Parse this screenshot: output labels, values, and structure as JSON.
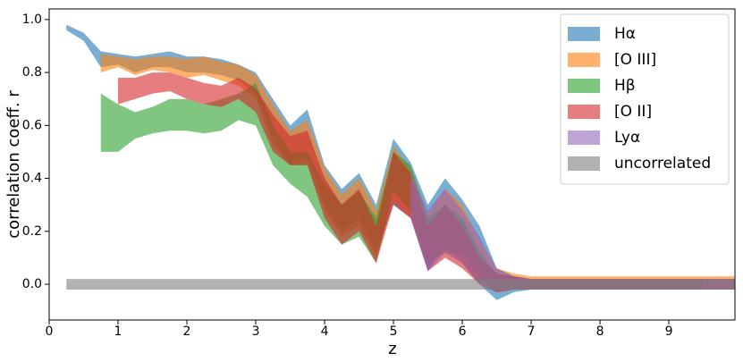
{
  "chart_data": {
    "type": "band",
    "xlabel": "z",
    "ylabel": "correlation coeff. r",
    "xlim": [
      0,
      9.96
    ],
    "ylim": [
      -0.135,
      1.04
    ],
    "xticks": [
      0,
      1,
      2,
      3,
      4,
      5,
      6,
      7,
      8,
      9
    ],
    "yticks": [
      {
        "value": 0,
        "label": "0.0"
      },
      0.2,
      0.4,
      0.6,
      0.8,
      {
        "value": 1,
        "label": "1.0"
      }
    ],
    "legend": "upper right",
    "opacity": 0.6,
    "x": [
      0.25,
      0.5,
      0.75,
      1.0,
      1.25,
      1.5,
      1.75,
      2.0,
      2.25,
      2.5,
      2.75,
      3.0,
      3.25,
      3.5,
      3.75,
      4.0,
      4.25,
      4.5,
      4.75,
      5.0,
      5.25,
      5.5,
      5.75,
      6.0,
      6.25,
      6.5,
      6.75,
      7.0,
      7.25,
      7.5,
      7.75,
      8.0,
      8.25,
      8.5,
      8.75,
      9.0,
      9.25,
      9.5,
      9.75,
      9.95
    ],
    "series": [
      {
        "name": "Hα",
        "color": "#1f77b4",
        "lower": [
          0.96,
          0.92,
          0.82,
          0.83,
          0.8,
          0.82,
          0.82,
          0.8,
          0.8,
          0.79,
          0.77,
          0.72,
          0.55,
          0.45,
          0.48,
          0.3,
          0.2,
          0.25,
          0.12,
          0.3,
          0.25,
          0.05,
          0.15,
          0.08,
          0.0,
          -0.06,
          -0.03,
          -0.02,
          -0.02,
          -0.02,
          -0.02,
          -0.02,
          -0.02,
          -0.02,
          -0.02,
          -0.02,
          -0.02,
          -0.02,
          -0.02,
          -0.02
        ],
        "upper": [
          0.98,
          0.95,
          0.88,
          0.87,
          0.86,
          0.87,
          0.88,
          0.86,
          0.86,
          0.85,
          0.83,
          0.8,
          0.7,
          0.6,
          0.66,
          0.45,
          0.36,
          0.42,
          0.3,
          0.55,
          0.46,
          0.3,
          0.4,
          0.32,
          0.22,
          0.06,
          0.03,
          0.02,
          0.02,
          0.02,
          0.02,
          0.02,
          0.02,
          0.02,
          0.02,
          0.02,
          0.02,
          0.02,
          0.02,
          0.02
        ]
      },
      {
        "name": "[O III]",
        "color": "#ff7f0e",
        "lower": [
          null,
          null,
          0.8,
          0.82,
          0.79,
          0.81,
          0.8,
          0.78,
          0.79,
          0.77,
          0.75,
          0.7,
          0.52,
          0.45,
          0.45,
          0.28,
          0.18,
          0.22,
          0.1,
          0.32,
          0.25,
          0.08,
          0.12,
          0.08,
          0.0,
          -0.03,
          -0.02,
          -0.02,
          -0.02,
          -0.02,
          -0.02,
          -0.02,
          -0.02,
          -0.02,
          -0.02,
          -0.02,
          -0.02,
          -0.02,
          -0.02,
          -0.02
        ],
        "upper": [
          null,
          null,
          0.87,
          0.86,
          0.85,
          0.86,
          0.86,
          0.85,
          0.86,
          0.84,
          0.83,
          0.79,
          0.68,
          0.58,
          0.62,
          0.44,
          0.34,
          0.4,
          0.28,
          0.52,
          0.44,
          0.26,
          0.36,
          0.3,
          0.16,
          0.06,
          0.04,
          0.03,
          0.03,
          0.03,
          0.03,
          0.03,
          0.03,
          0.03,
          0.03,
          0.03,
          0.03,
          0.03,
          0.03,
          0.03
        ]
      },
      {
        "name": "Hβ",
        "color": "#2ca02c",
        "lower": [
          null,
          null,
          0.5,
          0.5,
          0.55,
          0.57,
          0.58,
          0.58,
          0.57,
          0.58,
          0.62,
          0.6,
          0.45,
          0.38,
          0.33,
          0.22,
          0.15,
          0.18,
          0.08,
          0.35,
          0.28,
          0.08,
          0.12,
          0.12,
          0.02,
          -0.03,
          -0.02,
          -0.02,
          -0.02,
          -0.02,
          -0.02,
          -0.02,
          -0.02,
          -0.02,
          -0.02,
          -0.02,
          -0.02,
          -0.02,
          null,
          null
        ],
        "upper": [
          null,
          null,
          0.72,
          0.68,
          0.65,
          0.67,
          0.7,
          0.7,
          0.68,
          0.7,
          0.72,
          0.76,
          0.6,
          0.5,
          0.5,
          0.38,
          0.3,
          0.35,
          0.25,
          0.5,
          0.45,
          0.25,
          0.3,
          0.25,
          0.12,
          0.04,
          0.03,
          0.02,
          0.02,
          0.02,
          0.02,
          0.02,
          0.02,
          0.02,
          0.02,
          0.02,
          0.02,
          0.02,
          null,
          null
        ]
      },
      {
        "name": "[O II]",
        "color": "#d62728",
        "lower": [
          null,
          null,
          null,
          0.68,
          0.7,
          0.72,
          0.73,
          0.7,
          0.68,
          0.67,
          0.7,
          0.65,
          0.5,
          0.45,
          0.45,
          0.25,
          0.15,
          0.2,
          0.08,
          0.3,
          0.25,
          0.05,
          0.1,
          0.06,
          0.0,
          -0.03,
          -0.02,
          -0.02,
          -0.02,
          -0.02,
          -0.02,
          -0.02,
          -0.02,
          -0.02,
          -0.02,
          -0.02,
          -0.02,
          -0.02,
          -0.02,
          -0.02
        ],
        "upper": [
          null,
          null,
          null,
          0.78,
          0.78,
          0.8,
          0.8,
          0.78,
          0.76,
          0.75,
          0.78,
          0.74,
          0.64,
          0.56,
          0.58,
          0.4,
          0.3,
          0.36,
          0.22,
          0.5,
          0.42,
          0.22,
          0.3,
          0.22,
          0.1,
          0.04,
          0.03,
          0.02,
          0.02,
          0.02,
          0.02,
          0.02,
          0.02,
          0.02,
          0.02,
          0.02,
          0.02,
          0.02,
          0.02,
          0.02
        ]
      },
      {
        "name": "Lyα",
        "color": "#9467bd",
        "lower": [
          null,
          null,
          null,
          null,
          null,
          null,
          null,
          null,
          null,
          null,
          null,
          null,
          null,
          null,
          null,
          null,
          null,
          null,
          null,
          null,
          0.25,
          0.05,
          0.12,
          0.08,
          0.0,
          -0.03,
          -0.02,
          -0.02,
          -0.02,
          -0.02,
          -0.02,
          -0.02,
          -0.02,
          -0.02,
          -0.02,
          -0.02,
          -0.02,
          -0.02,
          -0.02,
          -0.02
        ],
        "upper": [
          null,
          null,
          null,
          null,
          null,
          null,
          null,
          null,
          null,
          null,
          null,
          null,
          null,
          null,
          null,
          null,
          null,
          null,
          null,
          null,
          0.42,
          0.28,
          0.36,
          0.28,
          0.18,
          0.06,
          0.03,
          0.02,
          0.02,
          0.02,
          0.02,
          0.02,
          0.02,
          0.02,
          0.02,
          0.02,
          0.02,
          0.02,
          0.02,
          0.02
        ]
      },
      {
        "name": "uncorrelated",
        "color": "#7f7f7f",
        "lower": [
          -0.02,
          -0.02,
          -0.02,
          -0.02,
          -0.02,
          -0.02,
          -0.02,
          -0.02,
          -0.02,
          -0.02,
          -0.02,
          -0.02,
          -0.02,
          -0.02,
          -0.02,
          -0.02,
          -0.02,
          -0.02,
          -0.02,
          -0.02,
          -0.02,
          -0.02,
          -0.02,
          -0.02,
          -0.02,
          -0.02,
          -0.02,
          -0.02,
          -0.02,
          -0.02,
          -0.02,
          -0.02,
          -0.02,
          -0.02,
          -0.02,
          -0.02,
          -0.02,
          -0.02,
          -0.02,
          -0.02
        ],
        "upper": [
          0.02,
          0.02,
          0.02,
          0.02,
          0.02,
          0.02,
          0.02,
          0.02,
          0.02,
          0.02,
          0.02,
          0.02,
          0.02,
          0.02,
          0.02,
          0.02,
          0.02,
          0.02,
          0.02,
          0.02,
          0.02,
          0.02,
          0.02,
          0.02,
          0.02,
          0.02,
          0.02,
          0.02,
          0.02,
          0.02,
          0.02,
          0.02,
          0.02,
          0.02,
          0.02,
          0.02,
          0.02,
          0.02,
          0.02,
          0.02
        ]
      }
    ]
  }
}
